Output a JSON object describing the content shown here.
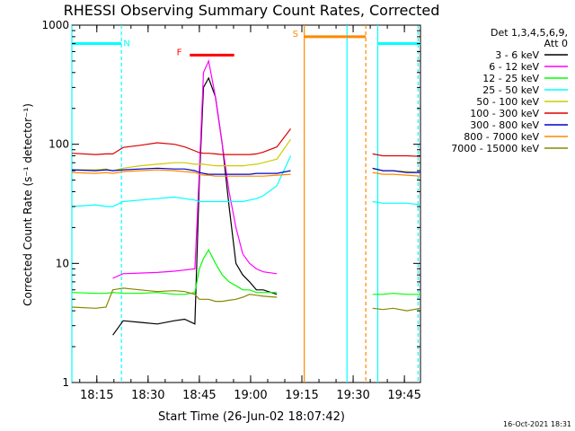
{
  "chart_data": {
    "type": "line",
    "title": "RHESSI Observing Summary Count Rates, Corrected",
    "xlabel": "Start Time (26-Jun-02 18:07:42)",
    "ylabel": "Corrected Count Rate (s⁻¹ detector⁻¹)",
    "yscale": "log",
    "ylim": [
      1,
      1000
    ],
    "xlim_minutes": [
      18.0,
      19.75
    ],
    "xlim_labels": [
      "18:07",
      "19:49"
    ],
    "x_unit": "minutes since 18:07:42",
    "x_ticks": [
      {
        "label": "18:15",
        "t": 7.3
      },
      {
        "label": "18:30",
        "t": 22.3
      },
      {
        "label": "18:45",
        "t": 37.3
      },
      {
        "label": "19:00",
        "t": 52.3
      },
      {
        "label": "19:15",
        "t": 67.3
      },
      {
        "label": "19:30",
        "t": 82.3
      },
      {
        "label": "19:45",
        "t": 97.3
      }
    ],
    "y_ticks": [
      {
        "label": "1",
        "v": 1
      },
      {
        "label": "10",
        "v": 10
      },
      {
        "label": "100",
        "v": 100
      },
      {
        "label": "1000",
        "v": 1000
      }
    ],
    "x_range": [
      0,
      102
    ],
    "legend_header": [
      "Det 1,3,4,5,6,9,",
      "Att 0"
    ],
    "legend_placement": "right",
    "series": [
      {
        "name": "3 - 6 keV",
        "color": "#000000",
        "t": [
          0,
          7,
          10,
          12,
          15,
          20,
          25,
          30,
          33,
          36,
          37.3,
          38.5,
          40,
          42,
          44,
          46,
          48,
          50,
          52,
          54,
          56,
          60,
          64,
          67.3,
          70,
          75,
          80,
          86,
          88,
          91,
          94,
          98,
          102
        ],
        "v": [
          null,
          null,
          null,
          2.5,
          3.3,
          3.2,
          3.1,
          3.3,
          3.4,
          3.1,
          50,
          300,
          360,
          250,
          100,
          30,
          10,
          8,
          7,
          6,
          6,
          5.5,
          null,
          null,
          null,
          null,
          null,
          null,
          null,
          null,
          null,
          null,
          null
        ]
      },
      {
        "name": "6 - 12 keV",
        "color": "#ff00ff",
        "t": [
          0,
          7,
          10,
          12,
          15,
          20,
          25,
          30,
          33,
          36,
          37.3,
          38.5,
          40,
          42,
          44,
          46,
          48,
          50,
          52,
          54,
          56,
          60,
          64,
          67.3,
          70,
          75,
          80,
          86,
          88,
          91,
          94,
          98,
          102
        ],
        "v": [
          null,
          null,
          null,
          7.5,
          8.2,
          8.3,
          8.4,
          8.6,
          8.8,
          9.0,
          60,
          400,
          500,
          250,
          100,
          40,
          20,
          12,
          10,
          9,
          8.5,
          8.2,
          null,
          null,
          null,
          null,
          null,
          null,
          null,
          null,
          null,
          null,
          null
        ]
      },
      {
        "name": "12 - 25 keV",
        "color": "#00ff00",
        "t": [
          0,
          7,
          10,
          12,
          15,
          20,
          25,
          30,
          33,
          36,
          37.3,
          38.5,
          40,
          42,
          44,
          46,
          48,
          50,
          52,
          54,
          56,
          60,
          64,
          67.3,
          70,
          75,
          80,
          86,
          88,
          91,
          94,
          98,
          102
        ],
        "v": [
          5.7,
          5.6,
          5.6,
          5.7,
          5.6,
          5.6,
          5.7,
          5.5,
          5.5,
          5.7,
          9,
          11,
          13,
          10,
          8,
          7,
          6.5,
          6,
          6,
          5.7,
          5.7,
          5.7,
          null,
          null,
          null,
          null,
          null,
          null,
          5.5,
          5.5,
          5.6,
          5.5,
          5.5
        ]
      },
      {
        "name": "25 - 50 keV",
        "color": "#00ffff",
        "t": [
          0,
          7,
          10,
          12,
          15,
          20,
          25,
          30,
          33,
          36,
          37.3,
          38.5,
          40,
          42,
          44,
          46,
          48,
          50,
          52,
          54,
          56,
          60,
          64,
          67.3,
          70,
          75,
          80,
          86,
          88,
          91,
          94,
          98,
          102
        ],
        "v": [
          30,
          31,
          30,
          30,
          33,
          34,
          35,
          36,
          35,
          34,
          33,
          33,
          33,
          33,
          33,
          33,
          33,
          33,
          34,
          35,
          37,
          45,
          80,
          null,
          null,
          null,
          null,
          null,
          33,
          32,
          32,
          32,
          31
        ]
      },
      {
        "name": "50 - 100 keV",
        "color": "#cccc00",
        "t": [
          0,
          7,
          10,
          12,
          15,
          20,
          25,
          30,
          33,
          36,
          37.3,
          38.5,
          40,
          42,
          44,
          46,
          48,
          50,
          52,
          54,
          56,
          60,
          64,
          67.3,
          70,
          75,
          80,
          86,
          88,
          91,
          94,
          98,
          102
        ],
        "v": [
          61,
          61,
          62,
          60,
          63,
          66,
          68,
          70,
          70,
          68,
          68,
          68,
          67,
          66,
          66,
          66,
          66,
          66,
          67,
          68,
          70,
          75,
          110,
          null,
          null,
          null,
          null,
          null,
          62,
          60,
          60,
          59,
          58
        ]
      },
      {
        "name": "100 - 300 keV",
        "color": "#dd0000",
        "t": [
          0,
          7,
          10,
          12,
          15,
          20,
          25,
          30,
          33,
          36,
          37.3,
          38.5,
          40,
          42,
          44,
          46,
          48,
          50,
          52,
          54,
          56,
          60,
          64,
          67.3,
          70,
          75,
          80,
          86,
          88,
          91,
          94,
          98,
          102
        ],
        "v": [
          84,
          82,
          83,
          83,
          94,
          98,
          103,
          100,
          95,
          88,
          85,
          84,
          84,
          83,
          82,
          82,
          82,
          82,
          82,
          83,
          86,
          95,
          135,
          null,
          null,
          null,
          null,
          null,
          83,
          80,
          80,
          80,
          79
        ]
      },
      {
        "name": "300 - 800 keV",
        "color": "#0000cc",
        "t": [
          0,
          7,
          10,
          12,
          15,
          20,
          25,
          30,
          33,
          36,
          37.3,
          38.5,
          40,
          42,
          44,
          46,
          48,
          50,
          52,
          54,
          56,
          60,
          64,
          67.3,
          70,
          75,
          80,
          86,
          88,
          91,
          94,
          98,
          102
        ],
        "v": [
          61,
          60,
          61,
          60,
          61,
          62,
          63,
          62,
          62,
          60,
          58,
          57,
          56,
          56,
          56,
          56,
          56,
          56,
          56,
          57,
          57,
          57,
          60,
          null,
          null,
          null,
          null,
          null,
          63,
          60,
          60,
          58,
          58
        ]
      },
      {
        "name": "800 - 7000 keV",
        "color": "#ff8800",
        "t": [
          0,
          7,
          10,
          12,
          15,
          20,
          25,
          30,
          33,
          36,
          37.3,
          38.5,
          40,
          42,
          44,
          46,
          48,
          50,
          52,
          54,
          56,
          60,
          64,
          67.3,
          70,
          75,
          80,
          86,
          88,
          91,
          94,
          98,
          102
        ],
        "v": [
          58,
          57,
          58,
          57,
          59,
          60,
          61,
          60,
          59,
          58,
          56,
          55,
          55,
          54,
          54,
          54,
          54,
          54,
          54,
          54,
          54,
          55,
          56,
          null,
          null,
          null,
          null,
          null,
          58,
          56,
          56,
          55,
          54
        ]
      },
      {
        "name": "7000 - 15000 keV",
        "color": "#888800",
        "t": [
          0,
          7,
          10,
          12,
          15,
          20,
          25,
          30,
          33,
          36,
          37.3,
          38.5,
          40,
          42,
          44,
          46,
          48,
          50,
          52,
          54,
          56,
          60,
          64,
          67.3,
          70,
          75,
          80,
          86,
          88,
          91,
          94,
          98,
          102
        ],
        "v": [
          4.3,
          4.2,
          4.3,
          6.0,
          6.2,
          6.0,
          5.8,
          5.9,
          5.8,
          5.5,
          5.0,
          5.0,
          5.0,
          4.8,
          4.8,
          4.9,
          5.0,
          5.2,
          5.5,
          5.4,
          5.3,
          5.2,
          null,
          null,
          null,
          null,
          null,
          null,
          4.2,
          4.1,
          4.2,
          4.0,
          4.2
        ]
      }
    ],
    "annotations": [
      {
        "label": "N",
        "color": "#00ffff",
        "text_t": 14.5
      },
      {
        "label": "F",
        "color": "#ff0000",
        "text_t": 33.0
      },
      {
        "label": "S",
        "color": "#ff8800",
        "text_t": 67.0
      }
    ],
    "intervals": [
      {
        "kind": "night",
        "color": "#00ffff",
        "start_t": 0,
        "end_t": 14.5,
        "level": 700,
        "dashed_end": true
      },
      {
        "kind": "night",
        "color": "#00ffff",
        "start_t": 89.5,
        "end_t": 102,
        "level": 700,
        "dashed_end": true
      },
      {
        "kind": "flare",
        "color": "#ff0000",
        "start_t": 34.5,
        "end_t": 47.5,
        "level": 560
      },
      {
        "kind": "saa",
        "color": "#ff8800",
        "start_t": 68.0,
        "end_t": 86.0,
        "level": 800,
        "dashed_end": true
      }
    ],
    "vertical_markers": [
      {
        "t": 0,
        "color": "#00ffff",
        "style": "solid"
      },
      {
        "t": 14.5,
        "color": "#00ffff",
        "style": "dashed"
      },
      {
        "t": 68.0,
        "color": "#ff8800",
        "style": "solid"
      },
      {
        "t": 80.5,
        "color": "#00ffff",
        "style": "solid"
      },
      {
        "t": 86.0,
        "color": "#ff8800",
        "style": "dashed"
      },
      {
        "t": 89.5,
        "color": "#00ffff",
        "style": "solid"
      },
      {
        "t": 101.3,
        "color": "#00ffff",
        "style": "dashed"
      }
    ],
    "footer_date": "16-Oct-2021 18:31"
  }
}
